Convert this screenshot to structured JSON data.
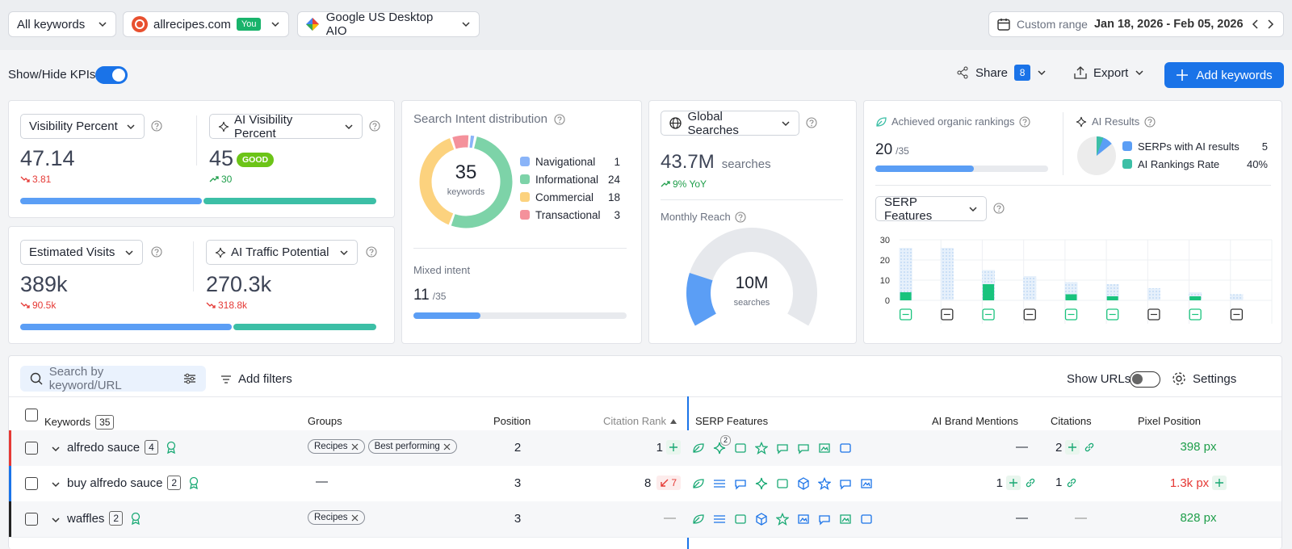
{
  "toolbar": {
    "keywords_select": "All keywords",
    "domain": "allrecipes.com",
    "you_badge": "You",
    "engine": "Google US Desktop AIO",
    "range_label": "Custom range",
    "range": "Jan 18, 2026 - Feb 05, 2026"
  },
  "actions": {
    "kpi_toggle": "Show/Hide KPIs",
    "share": "Share",
    "share_count": 8,
    "export": "Export",
    "add_keywords": "Add keywords"
  },
  "kpis": {
    "visibility": {
      "label": "Visibility Percent",
      "value": 47.14,
      "change": 3.81
    },
    "ai_visibility": {
      "label": "AI Visibility Percent",
      "value": 45,
      "badge": "GOOD",
      "change": 30
    },
    "visits": {
      "label": "Estimated Visits",
      "value": "389k",
      "change": "90.5k"
    },
    "ai_traffic": {
      "label": "AI Traffic Potential",
      "value": "270.3k",
      "change": "318.8k"
    }
  },
  "intent": {
    "title": "Search Intent distribution",
    "total": 35,
    "total_label": "keywords",
    "items": [
      {
        "name": "Navigational",
        "value": 1,
        "color": "#8ab4f8"
      },
      {
        "name": "Informational",
        "value": 24,
        "color": "#7dd3a8"
      },
      {
        "name": "Commercial",
        "value": 18,
        "color": "#fcd27e"
      },
      {
        "name": "Transactional",
        "value": 3,
        "color": "#f4919b"
      }
    ],
    "mixed_label": "Mixed intent",
    "mixed": 11,
    "mixed_of": "/35"
  },
  "global": {
    "select": "Global Searches",
    "value": "43.7M",
    "unit": "searches",
    "change": "9% YoY",
    "reach_label": "Monthly Reach",
    "reach_value": "10M",
    "reach_unit": "searches"
  },
  "organic": {
    "label": "Achieved organic rankings",
    "value": 20,
    "of": "/35",
    "ai_label": "AI Results",
    "ai_items": [
      {
        "name": "SERPs with AI results",
        "value": 5,
        "color": "#5b9ef5"
      },
      {
        "name": "AI Rankings Rate",
        "value": 40,
        "value_label": "40%",
        "color": "#3cbfa6"
      }
    ]
  },
  "serp_chart": {
    "type": "bar",
    "select": "SERP Features",
    "categories": [
      null,
      null,
      null,
      null,
      null,
      null,
      null,
      null,
      null
    ],
    "ylim": [
      0,
      30
    ],
    "yticks": [
      0,
      10,
      20,
      30
    ],
    "grid": true,
    "series": [
      {
        "color": "#cfe2f8",
        "values": [
          26,
          26,
          15,
          12,
          9,
          8,
          6,
          4,
          3
        ]
      },
      {
        "color": "#19c37d",
        "values": [
          4,
          0,
          8,
          0,
          3,
          2,
          0,
          2,
          0
        ]
      }
    ]
  },
  "table": {
    "search_placeholder": "Search by keyword/URL",
    "add_filters": "Add filters",
    "show_urls": "Show URLs",
    "settings": "Settings",
    "columns": [
      "Keywords",
      "Groups",
      "Position",
      "Citation Rank",
      "SERP Features",
      "AI Brand Mentions",
      "Citations",
      "Pixel Position"
    ],
    "keyword_count": 35,
    "rows": [
      {
        "color": "#e53935",
        "keyword": "alfredo sauce",
        "count": 4,
        "groups": [
          "Recipes",
          "Best performing"
        ],
        "position": 2,
        "citation_rank": 1,
        "serp_badge": 2,
        "ai_brand_mentions": "—",
        "citations": 2,
        "pixel_position": "398 px",
        "pixel_color": "#1e9e4a"
      },
      {
        "color": "#1a73e8",
        "keyword": "buy alfredo sauce",
        "count": 2,
        "groups": "—",
        "position": 3,
        "citation_rank": 8,
        "citation_change": 7,
        "ai_brand_mentions": 1,
        "citations": 1,
        "pixel_position": "1.3k px",
        "pixel_color": "#e53935"
      },
      {
        "color": "#222222",
        "keyword": "waffles",
        "count": 2,
        "groups": [
          "Recipes"
        ],
        "position": 3,
        "citation_rank": "—",
        "ai_brand_mentions": "—",
        "citations": "—",
        "pixel_position": "828 px",
        "pixel_color": "#1e9e4a"
      }
    ]
  }
}
